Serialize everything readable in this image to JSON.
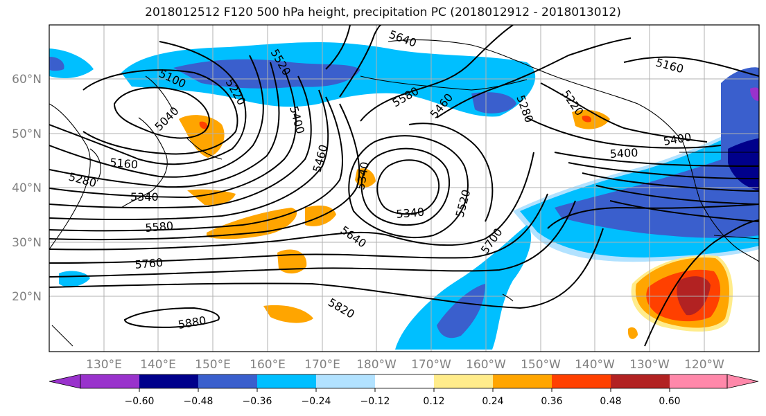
{
  "title": "2018012512 F120 500 hPa height, precipitation PC (2018012912 - 2018013012)",
  "map": {
    "lat_labels": [
      "60°N",
      "50°N",
      "40°N",
      "30°N",
      "20°N"
    ],
    "lon_labels": [
      "130°E",
      "140°E",
      "150°E",
      "160°E",
      "170°E",
      "180°W",
      "170°W",
      "160°W",
      "150°W",
      "140°W",
      "130°W",
      "120°W"
    ],
    "contour_labels": [
      "5640",
      "5520",
      "5100",
      "5220",
      "5040",
      "5400",
      "5580",
      "5460",
      "5280",
      "5220",
      "5160",
      "5160",
      "5400",
      "5400",
      "5460",
      "5340",
      "5280",
      "5340",
      "5580",
      "5520",
      "5640",
      "5700",
      "5760",
      "5820",
      "5880",
      "5340"
    ],
    "colors": {
      "purple": "#9932cc",
      "navy": "#00008b",
      "blue": "#3a5fcd",
      "cyan": "#00bfff",
      "lightblue": "#b2e2ff",
      "yellow": "#ffec8b",
      "orange": "#ffa500",
      "redorange": "#ff4000",
      "darkred": "#b22222",
      "pink": "#ff88aa"
    }
  },
  "colorbar": {
    "tick_labels": [
      "−0.60",
      "−0.48",
      "−0.36",
      "−0.24",
      "−0.12",
      "0.12",
      "0.24",
      "0.36",
      "0.48",
      "0.60"
    ],
    "bins": [
      "#9932cc",
      "#00008b",
      "#3a5fcd",
      "#00bfff",
      "#b2e2ff",
      "#ffffff",
      "#ffec8b",
      "#ffa500",
      "#ff4000",
      "#b22222",
      "#ff88aa"
    ]
  }
}
